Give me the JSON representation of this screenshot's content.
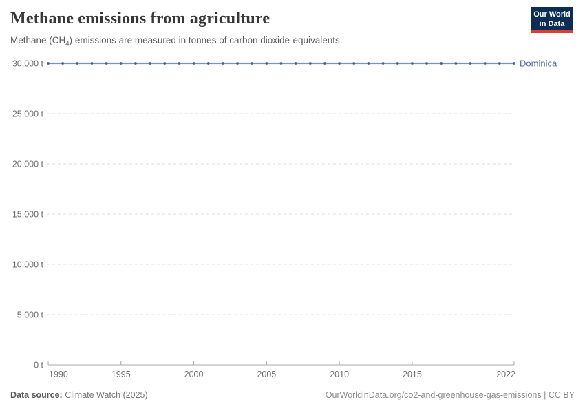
{
  "header": {
    "title": "Methane emissions from agriculture",
    "subtitle_prefix": "Methane (CH",
    "subtitle_sub": "4",
    "subtitle_suffix": ") emissions are measured in tonnes of carbon dioxide-equivalents.",
    "logo": {
      "line1": "Our World",
      "line2": "in Data"
    }
  },
  "chart_data": {
    "type": "line",
    "title": "Methane emissions from agriculture",
    "x": [
      1990,
      1991,
      1992,
      1993,
      1994,
      1995,
      1996,
      1997,
      1998,
      1999,
      2000,
      2001,
      2002,
      2003,
      2004,
      2005,
      2006,
      2007,
      2008,
      2009,
      2010,
      2011,
      2012,
      2013,
      2014,
      2015,
      2016,
      2017,
      2018,
      2019,
      2020,
      2021,
      2022
    ],
    "series": [
      {
        "name": "Dominica",
        "values": [
          30000,
          30000,
          30000,
          30000,
          30000,
          30000,
          30000,
          30000,
          30000,
          30000,
          30000,
          30000,
          30000,
          30000,
          30000,
          30000,
          30000,
          30000,
          30000,
          30000,
          30000,
          30000,
          30000,
          30000,
          30000,
          30000,
          30000,
          30000,
          30000,
          30000,
          30000,
          30000,
          30000
        ],
        "line_color": "#7e94ba",
        "marker_color": "#40609f",
        "label_color": "#4c6ba4"
      }
    ],
    "ylim": [
      0,
      30000
    ],
    "yticks": [
      0,
      5000,
      10000,
      15000,
      20000,
      25000,
      30000
    ],
    "ytick_labels": [
      "0 t",
      "5,000 t",
      "10,000 t",
      "15,000 t",
      "20,000 t",
      "25,000 t",
      "30,000 t"
    ],
    "xticks": [
      1990,
      1995,
      2000,
      2005,
      2010,
      2015,
      2022
    ],
    "grid": "horizontal-dashed",
    "grid_color": "#dcdcdc",
    "axis_color": "#a8a8a8",
    "tick_label_color": "#6e6e6e",
    "legend_position": "end-of-line"
  },
  "footer": {
    "source_label": "Data source:",
    "source_value": "Climate Watch (2025)",
    "credit": "OurWorldinData.org/co2-and-greenhouse-gas-emissions | CC BY"
  }
}
